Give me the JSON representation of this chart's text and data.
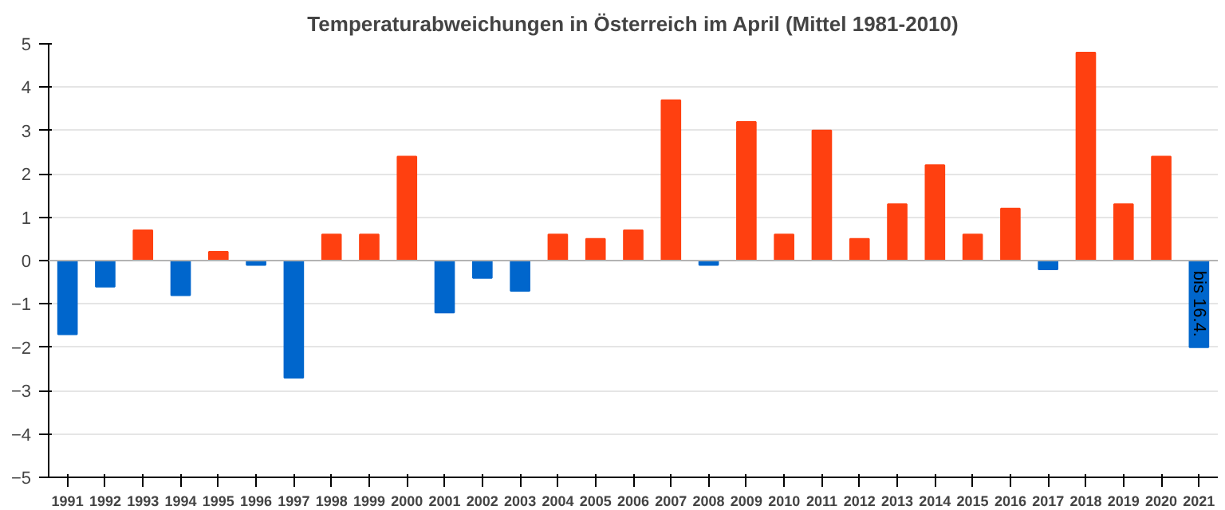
{
  "chart_data": {
    "type": "bar",
    "title": "Temperaturabweichungen in Österreich im April (Mittel 1981-2010)",
    "categories": [
      "1991",
      "1992",
      "1993",
      "1994",
      "1995",
      "1996",
      "1997",
      "1998",
      "1999",
      "2000",
      "2001",
      "2002",
      "2003",
      "2004",
      "2005",
      "2006",
      "2007",
      "2008",
      "2009",
      "2010",
      "2011",
      "2012",
      "2013",
      "2014",
      "2015",
      "2016",
      "2017",
      "2018",
      "2019",
      "2020",
      "2021"
    ],
    "values": [
      -1.7,
      -0.6,
      0.7,
      -0.8,
      0.2,
      -0.1,
      -2.7,
      0.6,
      0.6,
      2.4,
      -1.2,
      -0.4,
      -0.7,
      0.6,
      0.5,
      0.7,
      3.7,
      -0.1,
      3.2,
      0.6,
      3.0,
      0.5,
      1.3,
      2.2,
      0.6,
      1.2,
      -0.2,
      4.8,
      1.3,
      2.4,
      -2.0
    ],
    "colors": [
      "#0066cc",
      "#0066cc",
      "#ff4010",
      "#0066cc",
      "#ff4010",
      "#0066cc",
      "#0066cc",
      "#ff4010",
      "#ff4010",
      "#ff4010",
      "#0066cc",
      "#0066cc",
      "#0066cc",
      "#ff4010",
      "#ff4010",
      "#ff4010",
      "#ff4010",
      "#0066cc",
      "#ff4010",
      "#ff4010",
      "#ff4010",
      "#ff4010",
      "#ff4010",
      "#ff4010",
      "#ff4010",
      "#ff4010",
      "#0066cc",
      "#ff4010",
      "#ff4010",
      "#ff4010",
      "#0066cc"
    ],
    "ylim": [
      -5,
      5
    ],
    "yticks": [
      -5,
      -4,
      -3,
      -2,
      -1,
      0,
      1,
      2,
      3,
      4,
      5
    ],
    "grid": "y",
    "annotations": [
      "bis 16.4."
    ]
  }
}
